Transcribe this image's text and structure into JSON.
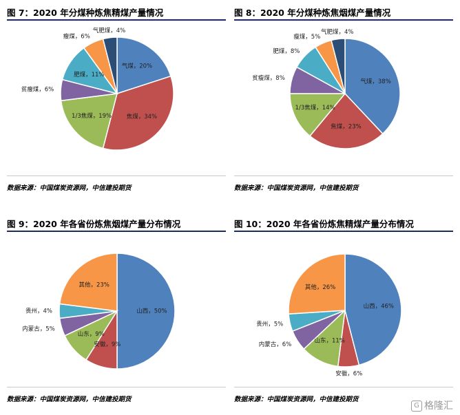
{
  "chart_data": [
    {
      "type": "pie",
      "title": "图 7：2020 年分煤种炼焦精煤产量情况",
      "source": "数据来源：中国煤炭资源网，中信建投期货",
      "slices": [
        {
          "label": "气煤",
          "text": "气煤，20%",
          "value": 20,
          "color": "#4f81bd"
        },
        {
          "label": "焦煤",
          "text": "焦煤，34%",
          "value": 34,
          "color": "#c0504d"
        },
        {
          "label": "1/3焦煤",
          "text": "1/3焦煤，19%",
          "value": 19,
          "color": "#9bbb59"
        },
        {
          "label": "贫瘦煤",
          "text": "贫瘦煤，6%",
          "value": 6,
          "color": "#8064a2"
        },
        {
          "label": "肥煤",
          "text": "肥煤，11%",
          "value": 11,
          "color": "#4bacc6"
        },
        {
          "label": "瘦煤",
          "text": "瘦煤，6%",
          "value": 6,
          "color": "#f79646"
        },
        {
          "label": "气肥煤",
          "text": "气肥煤，4%",
          "value": 4,
          "color": "#2c4d75"
        }
      ]
    },
    {
      "type": "pie",
      "title": "图 8：2020 年分煤种炼焦烟煤产量情况",
      "source": "数据来源：中国煤炭资源网，中信建投期货",
      "slices": [
        {
          "label": "气煤",
          "text": "气煤，38%",
          "value": 38,
          "color": "#4f81bd"
        },
        {
          "label": "焦煤",
          "text": "焦煤，23%",
          "value": 23,
          "color": "#c0504d"
        },
        {
          "label": "1/3焦煤",
          "text": "1/3焦煤，14%",
          "value": 14,
          "color": "#9bbb59"
        },
        {
          "label": "贫瘦煤",
          "text": "贫瘦煤，8%",
          "value": 8,
          "color": "#8064a2"
        },
        {
          "label": "肥煤",
          "text": "肥煤，8%",
          "value": 8,
          "color": "#4bacc6"
        },
        {
          "label": "瘦煤",
          "text": "瘦煤，5%",
          "value": 5,
          "color": "#f79646"
        },
        {
          "label": "气肥煤",
          "text": "气肥煤，4%",
          "value": 4,
          "color": "#2c4d75"
        }
      ]
    },
    {
      "type": "pie",
      "title": "图 9：2020 年各省份炼焦烟煤产量分布情况",
      "source": "数据来源：中国煤炭资源网，中信建投期货",
      "slices": [
        {
          "label": "山西",
          "text": "山西，50%",
          "value": 50,
          "color": "#4f81bd"
        },
        {
          "label": "安徽",
          "text": "安徽，9%",
          "value": 9,
          "color": "#c0504d"
        },
        {
          "label": "山东",
          "text": "山东，9%",
          "value": 9,
          "color": "#9bbb59"
        },
        {
          "label": "内蒙古",
          "text": "内蒙古，5%",
          "value": 5,
          "color": "#8064a2"
        },
        {
          "label": "贵州",
          "text": "贵州，4%",
          "value": 4,
          "color": "#4bacc6"
        },
        {
          "label": "其他",
          "text": "其他，23%",
          "value": 23,
          "color": "#f79646"
        }
      ]
    },
    {
      "type": "pie",
      "title": "图 10：2020 年各省份炼焦精煤产量分布情况",
      "source": "数据来源：中国煤炭资源网，中信建投期货",
      "slices": [
        {
          "label": "山西",
          "text": "山西，46%",
          "value": 46,
          "color": "#4f81bd"
        },
        {
          "label": "安徽",
          "text": "安徽，6%",
          "value": 6,
          "color": "#c0504d"
        },
        {
          "label": "山东",
          "text": "山东，11%",
          "value": 11,
          "color": "#9bbb59"
        },
        {
          "label": "内蒙古",
          "text": "内蒙古，6%",
          "value": 6,
          "color": "#8064a2"
        },
        {
          "label": "贵州",
          "text": "贵州，5%",
          "value": 5,
          "color": "#4bacc6"
        },
        {
          "label": "其他",
          "text": "其他，26%",
          "value": 26,
          "color": "#f79646"
        }
      ]
    }
  ],
  "watermark": {
    "text": "格隆汇",
    "icon": "G"
  }
}
